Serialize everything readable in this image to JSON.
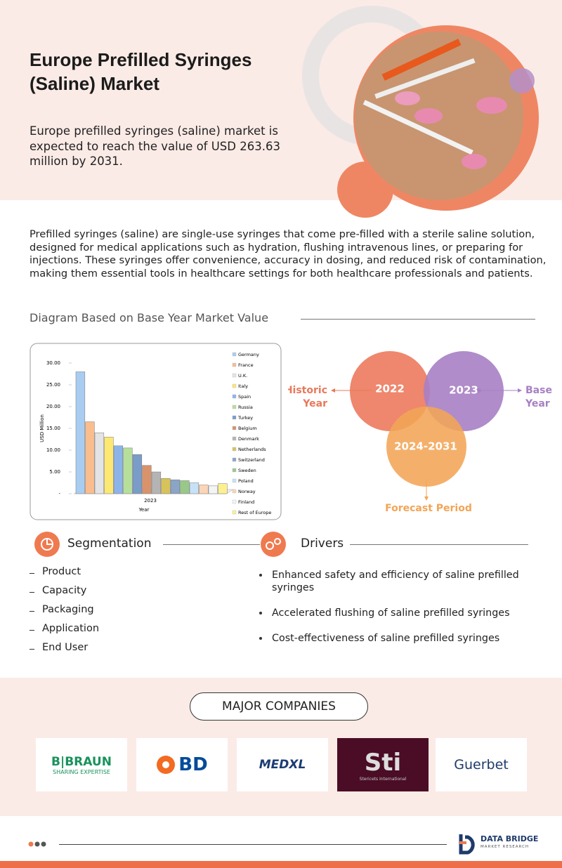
{
  "header": {
    "title_lines": [
      "Europe Prefilled Syringes",
      "(Saline) Market"
    ],
    "summary_lines": [
      "Europe prefilled syringes (saline) market is",
      "expected to reach the value of USD 263.63",
      "million by 2031."
    ]
  },
  "description": "Prefilled syringes (saline) are single-use syringes that come pre-filled with a sterile saline solution, designed for medical applications such as hydration, flushing intravenous lines, or preparing for injections. These syringes offer convenience, accuracy in dosing, and reduced risk of contamination, making them essential tools in healthcare settings for both healthcare professionals and patients.",
  "diagram": {
    "heading": "Diagram Based on Base Year Market Value"
  },
  "chart_data": {
    "type": "bar",
    "categories": [
      "2023"
    ],
    "x_label": "Year",
    "y_label": "USD Million",
    "ylim": [
      0,
      30
    ],
    "yticks": [
      {
        "value": 0,
        "label": "-"
      },
      {
        "value": 5,
        "label": "5.00"
      },
      {
        "value": 10,
        "label": "10.00"
      },
      {
        "value": 15,
        "label": "15.00"
      },
      {
        "value": 20,
        "label": "20.00"
      },
      {
        "value": 25,
        "label": "25.00"
      },
      {
        "value": 30,
        "label": "30.00"
      }
    ],
    "series": [
      {
        "name": "Germany",
        "color": "#a9cdf0",
        "values": [
          28
        ]
      },
      {
        "name": "France",
        "color": "#f9bd8e",
        "values": [
          16.5
        ]
      },
      {
        "name": "U.K.",
        "color": "#e4e4e4",
        "values": [
          14
        ]
      },
      {
        "name": "Italy",
        "color": "#fde872",
        "values": [
          13
        ]
      },
      {
        "name": "Spain",
        "color": "#8db4e8",
        "values": [
          11
        ]
      },
      {
        "name": "Russia",
        "color": "#b6df9c",
        "values": [
          10.5
        ]
      },
      {
        "name": "Turkey",
        "color": "#7a9cc8",
        "values": [
          9
        ]
      },
      {
        "name": "Belgium",
        "color": "#d9926a",
        "values": [
          6.5
        ]
      },
      {
        "name": "Denmark",
        "color": "#b4b4b4",
        "values": [
          5
        ]
      },
      {
        "name": "Netherlands",
        "color": "#d8c35a",
        "values": [
          3.5
        ]
      },
      {
        "name": "Switzerland",
        "color": "#8aa5c5",
        "values": [
          3.2
        ]
      },
      {
        "name": "Sweden",
        "color": "#99c989",
        "values": [
          3
        ]
      },
      {
        "name": "Poland",
        "color": "#c7e1f7",
        "values": [
          2.5
        ]
      },
      {
        "name": "Norway",
        "color": "#fcd5b5",
        "values": [
          2
        ]
      },
      {
        "name": "Finland",
        "color": "#f4f4f4",
        "values": [
          1.8
        ]
      },
      {
        "name": "Rest of Europe",
        "color": "#fdf08f",
        "values": [
          2.3
        ]
      }
    ]
  },
  "venn": {
    "circles": [
      "2022",
      "2023",
      "2024-2031"
    ],
    "historic": [
      "Historic",
      "Year"
    ],
    "base": [
      "Base",
      "Year"
    ],
    "forecast": "Forecast Period"
  },
  "segmentation": {
    "heading": "Segmentation",
    "items": [
      "Product",
      "Capacity",
      "Packaging",
      "Application",
      "End User"
    ]
  },
  "drivers": {
    "heading": "Drivers",
    "items": [
      "Enhanced safety and efficiency of saline prefilled syringes",
      "Accelerated flushing of saline prefilled syringes",
      "Cost-effectiveness of saline prefilled syringes"
    ]
  },
  "companies": {
    "heading": "MAJOR COMPANIES",
    "logos": [
      [
        "B|BRAUN",
        "SHARING EXPERTISE"
      ],
      [
        "BD"
      ],
      [
        "MEDXL"
      ],
      [
        "Sti",
        "Stericets International"
      ],
      [
        "Guerbet"
      ]
    ]
  },
  "footer": {
    "brand": "DATA BRIDGE",
    "tagline": "MARKET RESEARCH"
  }
}
